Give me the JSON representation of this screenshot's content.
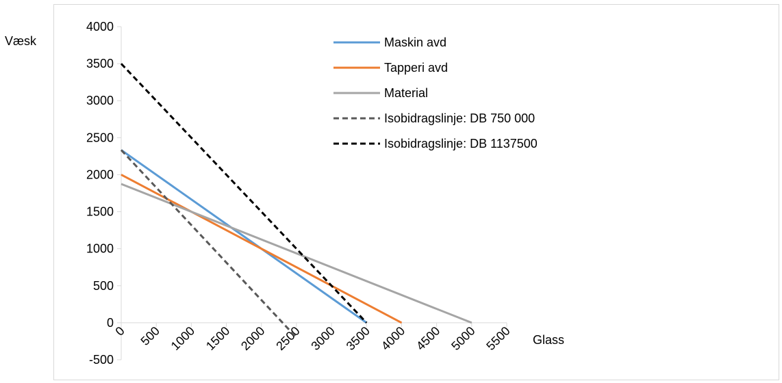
{
  "chart_data": {
    "type": "line",
    "title": "",
    "xlabel": "Glass",
    "ylabel": "Væsk",
    "xlim": [
      0,
      5500
    ],
    "ylim": [
      -500,
      4000
    ],
    "x_ticks": [
      "0",
      "500",
      "1000",
      "1500",
      "2000",
      "2500",
      "3000",
      "3500",
      "4000",
      "4500",
      "5000",
      "5500"
    ],
    "y_ticks": [
      "-500",
      "0",
      "500",
      "1000",
      "1500",
      "2000",
      "2500",
      "3000",
      "3500",
      "4000"
    ],
    "grid": false,
    "legend_position": "top-right",
    "series": [
      {
        "name": "Maskin avd",
        "color": "#5b9bd5",
        "dash": "solid",
        "points": [
          [
            0,
            2333
          ],
          [
            3500,
            0
          ]
        ]
      },
      {
        "name": "Tapperi avd",
        "color": "#ed7d31",
        "dash": "solid",
        "points": [
          [
            0,
            2000
          ],
          [
            4000,
            0
          ]
        ]
      },
      {
        "name": "Material",
        "color": "#a5a5a5",
        "dash": "solid",
        "points": [
          [
            0,
            1875
          ],
          [
            5000,
            0
          ]
        ]
      },
      {
        "name": "Isobidragslinje: DB 750 000",
        "color": "#595959",
        "dash": "dashed",
        "points": [
          [
            0,
            2333
          ],
          [
            2500,
            -200
          ]
        ]
      },
      {
        "name": "Isobidragslinje: DB 1137500",
        "color": "#000000",
        "dash": "dashed",
        "points": [
          [
            0,
            3500
          ],
          [
            3500,
            0
          ]
        ]
      }
    ]
  }
}
